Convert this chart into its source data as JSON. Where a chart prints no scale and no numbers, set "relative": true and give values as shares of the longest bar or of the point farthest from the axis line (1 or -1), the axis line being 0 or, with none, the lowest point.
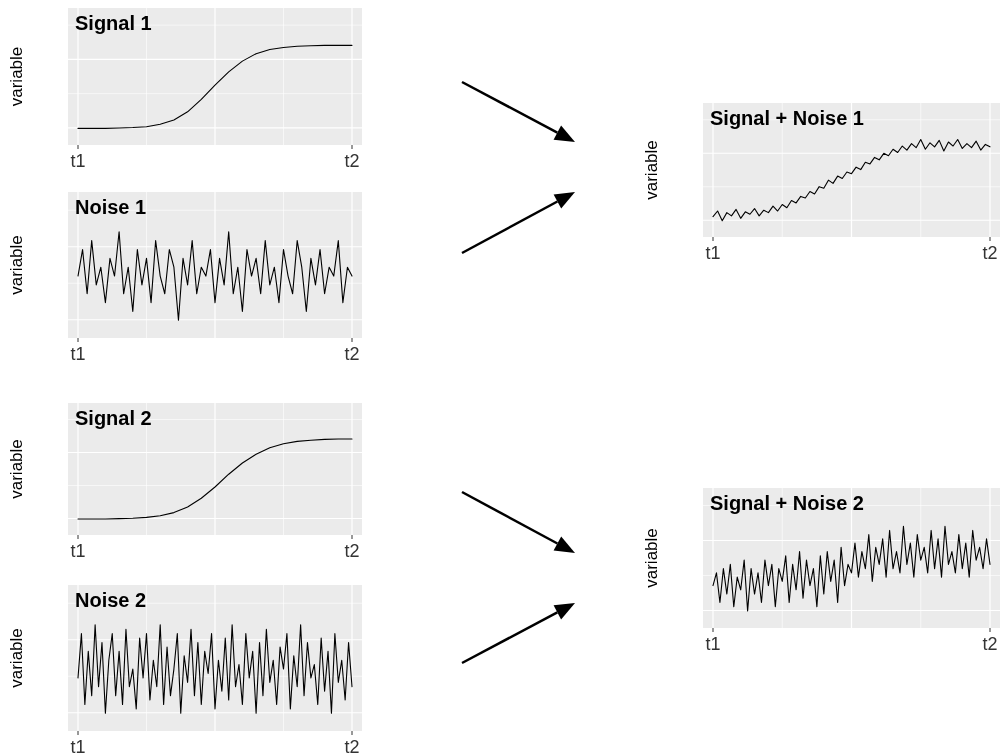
{
  "chart_data": [
    {
      "type": "line",
      "title": "Signal 1",
      "ylabel": "variable",
      "relative": true,
      "grid": true,
      "color": "#000000",
      "categories": [
        "t1",
        null,
        null,
        null,
        null,
        null,
        null,
        null,
        null,
        null,
        null,
        null,
        null,
        null,
        null,
        null,
        null,
        null,
        null,
        null,
        "t2"
      ],
      "values": [
        0,
        0,
        0,
        0.005,
        0.01,
        0.02,
        0.05,
        0.1,
        0.2,
        0.35,
        0.52,
        0.68,
        0.81,
        0.9,
        0.95,
        0.975,
        0.99,
        0.995,
        1,
        1,
        1
      ]
    },
    {
      "type": "line",
      "title": "Noise 1",
      "ylabel": "variable",
      "relative": true,
      "grid": true,
      "color": "#000000",
      "categories": [
        "t1",
        null,
        null,
        null,
        null,
        null,
        null,
        null,
        null,
        null,
        null,
        null,
        null,
        null,
        null,
        null,
        null,
        null,
        null,
        null,
        null,
        null,
        null,
        null,
        null,
        null,
        null,
        null,
        null,
        null,
        null,
        null,
        null,
        null,
        null,
        null,
        null,
        null,
        null,
        null,
        null,
        null,
        null,
        null,
        null,
        null,
        null,
        null,
        null,
        null,
        null,
        null,
        null,
        null,
        null,
        null,
        null,
        null,
        null,
        null,
        "t2"
      ],
      "values": [
        0.5,
        0.8,
        0.3,
        0.9,
        0.4,
        0.6,
        0.2,
        0.7,
        0.5,
        1,
        0.3,
        0.6,
        0.1,
        0.8,
        0.4,
        0.7,
        0.2,
        0.9,
        0.5,
        0.3,
        0.8,
        0.6,
        0,
        0.7,
        0.4,
        0.9,
        0.3,
        0.6,
        0.5,
        0.8,
        0.2,
        0.7,
        0.4,
        1,
        0.3,
        0.6,
        0.1,
        0.8,
        0.5,
        0.7,
        0.3,
        0.9,
        0.4,
        0.6,
        0.2,
        0.8,
        0.5,
        0.3,
        0.9,
        0.6,
        0.1,
        0.7,
        0.4,
        0.8,
        0.3,
        0.6,
        0.5,
        0.9,
        0.2,
        0.6,
        0.5
      ]
    },
    {
      "type": "line",
      "title": "Signal + Noise 1",
      "ylabel": "variable",
      "relative": true,
      "grid": true,
      "color": "#000000",
      "categories": [
        "t1",
        null,
        null,
        null,
        null,
        null,
        null,
        null,
        null,
        null,
        null,
        null,
        null,
        null,
        null,
        null,
        null,
        null,
        null,
        null,
        null,
        null,
        null,
        null,
        null,
        null,
        null,
        null,
        null,
        null,
        null,
        null,
        null,
        null,
        null,
        null,
        null,
        null,
        null,
        null,
        null,
        null,
        null,
        null,
        null,
        null,
        null,
        null,
        null,
        null,
        null,
        null,
        null,
        null,
        null,
        null,
        null,
        null,
        null,
        null,
        "t2"
      ],
      "values": [
        0.05,
        0.12,
        0,
        0.1,
        0.06,
        0.14,
        0.03,
        0.11,
        0.08,
        0.15,
        0.06,
        0.13,
        0.1,
        0.18,
        0.12,
        0.2,
        0.16,
        0.25,
        0.22,
        0.3,
        0.28,
        0.36,
        0.33,
        0.42,
        0.4,
        0.5,
        0.46,
        0.55,
        0.52,
        0.6,
        0.58,
        0.66,
        0.63,
        0.72,
        0.7,
        0.78,
        0.75,
        0.83,
        0.8,
        0.88,
        0.84,
        0.92,
        0.87,
        0.95,
        0.9,
        1,
        0.88,
        0.96,
        0.91,
        0.99,
        0.86,
        0.97,
        0.92,
        1,
        0.89,
        0.95,
        0.9,
        0.98,
        0.87,
        0.94,
        0.91
      ]
    },
    {
      "type": "line",
      "title": "Signal 2",
      "ylabel": "variable",
      "relative": true,
      "grid": true,
      "color": "#000000",
      "categories": [
        "t1",
        null,
        null,
        null,
        null,
        null,
        null,
        null,
        null,
        null,
        null,
        null,
        null,
        null,
        null,
        null,
        null,
        null,
        null,
        null,
        "t2"
      ],
      "values": [
        0,
        0,
        0,
        0.005,
        0.01,
        0.02,
        0.04,
        0.08,
        0.15,
        0.26,
        0.4,
        0.56,
        0.7,
        0.81,
        0.89,
        0.94,
        0.97,
        0.985,
        0.995,
        1,
        1
      ]
    },
    {
      "type": "line",
      "title": "Noise 2",
      "ylabel": "variable",
      "relative": true,
      "grid": true,
      "color": "#000000",
      "categories": [
        "t1",
        null,
        null,
        null,
        null,
        null,
        null,
        null,
        null,
        null,
        null,
        null,
        null,
        null,
        null,
        null,
        null,
        null,
        null,
        null,
        null,
        null,
        null,
        null,
        null,
        null,
        null,
        null,
        null,
        null,
        null,
        null,
        null,
        null,
        null,
        null,
        null,
        null,
        null,
        null,
        null,
        null,
        null,
        null,
        null,
        null,
        null,
        null,
        null,
        null,
        null,
        null,
        null,
        null,
        null,
        null,
        null,
        null,
        null,
        null,
        null,
        null,
        null,
        null,
        null,
        null,
        null,
        null,
        null,
        null,
        null,
        null,
        null,
        null,
        null,
        null,
        null,
        null,
        null,
        null,
        "t2"
      ],
      "values": [
        0.4,
        0.9,
        0.1,
        0.7,
        0.2,
        1,
        0.3,
        0.8,
        0,
        0.6,
        0.9,
        0.2,
        0.7,
        0.1,
        0.95,
        0.3,
        0.5,
        0.05,
        0.85,
        0.4,
        0.9,
        0.15,
        0.6,
        0.3,
        1,
        0.1,
        0.75,
        0.2,
        0.5,
        0.9,
        0,
        0.65,
        0.35,
        0.95,
        0.2,
        0.8,
        0.1,
        0.7,
        0.45,
        0.9,
        0.05,
        0.6,
        0.25,
        0.85,
        0.15,
        1,
        0.3,
        0.55,
        0.1,
        0.9,
        0.4,
        0.7,
        0,
        0.8,
        0.2,
        0.95,
        0.35,
        0.6,
        0.1,
        0.75,
        0.5,
        0.9,
        0.05,
        0.65,
        0.3,
        1,
        0.2,
        0.8,
        0.4,
        0.55,
        0.1,
        0.85,
        0.25,
        0.7,
        0,
        0.9,
        0.35,
        0.6,
        0.15,
        0.8,
        0.3
      ]
    },
    {
      "type": "line",
      "title": "Signal + Noise 2",
      "ylabel": "variable",
      "relative": true,
      "grid": true,
      "color": "#000000",
      "categories": [
        "t1",
        null,
        null,
        null,
        null,
        null,
        null,
        null,
        null,
        null,
        null,
        null,
        null,
        null,
        null,
        null,
        null,
        null,
        null,
        null,
        null,
        null,
        null,
        null,
        null,
        null,
        null,
        null,
        null,
        null,
        null,
        null,
        null,
        null,
        null,
        null,
        null,
        null,
        null,
        null,
        null,
        null,
        null,
        null,
        null,
        null,
        null,
        null,
        null,
        null,
        null,
        null,
        null,
        null,
        null,
        null,
        null,
        null,
        null,
        null,
        null,
        null,
        null,
        null,
        null,
        null,
        null,
        null,
        null,
        null,
        null,
        null,
        null,
        null,
        null,
        null,
        null,
        null,
        null,
        null,
        "t2"
      ],
      "values": [
        0.3,
        0.45,
        0.1,
        0.5,
        0.2,
        0.55,
        0.05,
        0.4,
        0.25,
        0.6,
        0,
        0.5,
        0.2,
        0.45,
        0.1,
        0.6,
        0.3,
        0.55,
        0.05,
        0.5,
        0.35,
        0.65,
        0.1,
        0.55,
        0.25,
        0.7,
        0.15,
        0.6,
        0.3,
        0.5,
        0.05,
        0.65,
        0.2,
        0.7,
        0.35,
        0.6,
        0.1,
        0.75,
        0.3,
        0.55,
        0.45,
        0.8,
        0.4,
        0.7,
        0.5,
        0.9,
        0.35,
        0.75,
        0.55,
        0.85,
        0.4,
        0.95,
        0.5,
        0.7,
        0.45,
        1,
        0.55,
        0.8,
        0.4,
        0.9,
        0.6,
        0.75,
        0.45,
        0.95,
        0.5,
        0.85,
        0.4,
        1,
        0.55,
        0.7,
        0.45,
        0.9,
        0.5,
        0.8,
        0.4,
        0.95,
        0.6,
        0.75,
        0.5,
        0.85,
        0.55
      ]
    }
  ]
}
